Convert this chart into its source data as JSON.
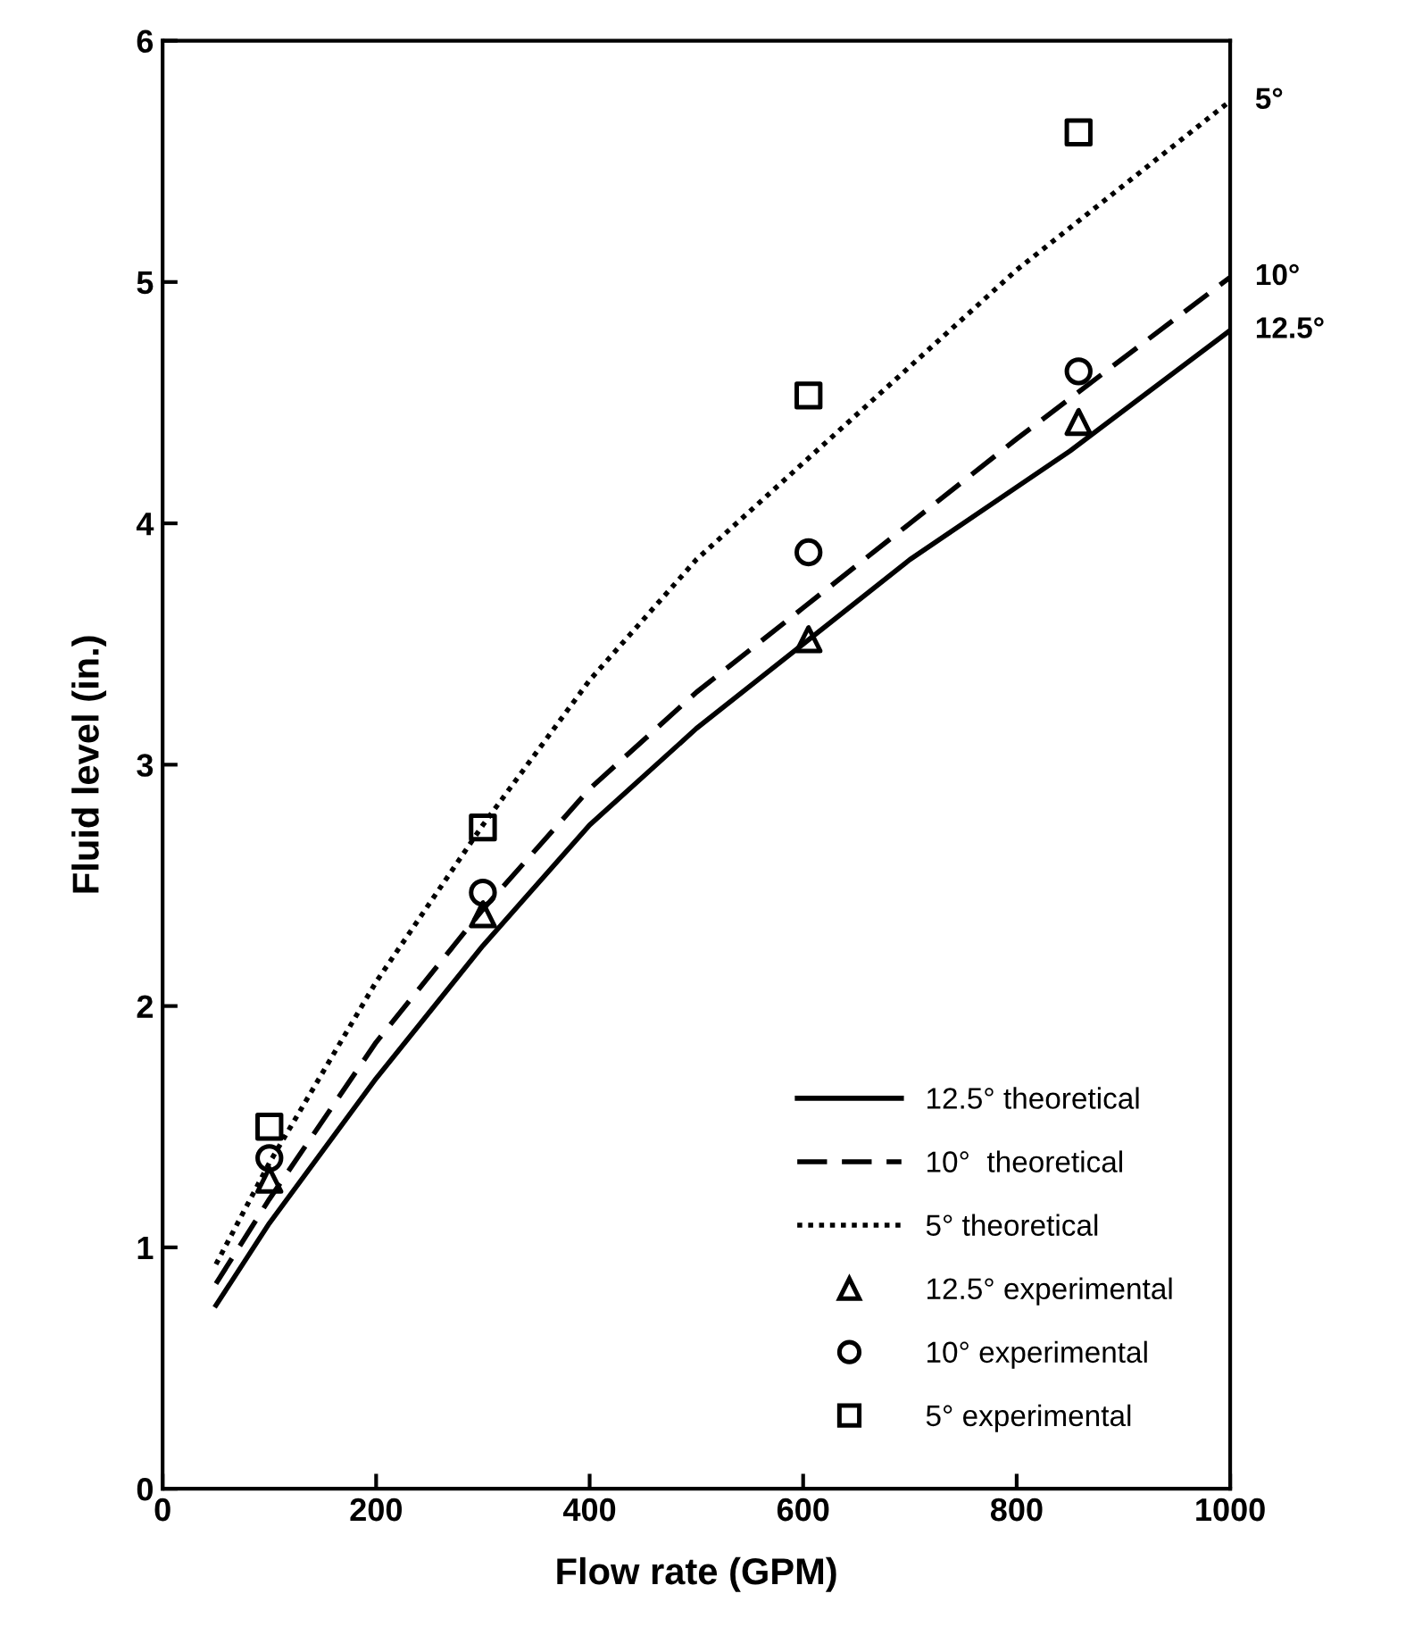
{
  "chart_data": {
    "type": "line",
    "xlabel": "Flow rate (GPM)",
    "ylabel": "Fluid level (in.)",
    "xlim": [
      0,
      1000
    ],
    "ylim": [
      0,
      6
    ],
    "xticks": [
      0,
      200,
      400,
      600,
      800,
      1000
    ],
    "yticks": [
      0,
      1,
      2,
      3,
      4,
      5,
      6
    ],
    "grid": false,
    "legend": "bottom right",
    "series": [
      {
        "name": "12.5° theoretical",
        "line_style": "solid",
        "color": "#000000",
        "x": [
          50,
          100,
          200,
          300,
          400,
          500,
          600,
          700,
          800,
          850,
          1000
        ],
        "values": [
          0.76,
          1.1,
          1.7,
          2.25,
          2.75,
          3.15,
          3.5,
          3.85,
          4.15,
          4.3,
          4.8
        ]
      },
      {
        "name": "10°  theoretical",
        "line_style": "dashed",
        "color": "#000000",
        "x": [
          50,
          100,
          200,
          300,
          400,
          500,
          600,
          700,
          800,
          1000
        ],
        "values": [
          0.85,
          1.2,
          1.85,
          2.4,
          2.9,
          3.3,
          3.65,
          4.0,
          4.35,
          5.02
        ]
      },
      {
        "name": "5° theoretical",
        "line_style": "dotted",
        "color": "#000000",
        "x": [
          50,
          100,
          200,
          300,
          400,
          500,
          600,
          700,
          800,
          1000
        ],
        "values": [
          0.93,
          1.35,
          2.1,
          2.75,
          3.35,
          3.85,
          4.25,
          4.65,
          5.05,
          5.75
        ]
      },
      {
        "name": "12.5° experimental",
        "type": "scatter",
        "marker": "triangle",
        "color": "#000000",
        "x": [
          100,
          300,
          605,
          858
        ],
        "values": [
          1.28,
          2.38,
          3.52,
          4.42
        ]
      },
      {
        "name": "10° experimental",
        "type": "scatter",
        "marker": "circle",
        "color": "#000000",
        "x": [
          100,
          300,
          605,
          858
        ],
        "values": [
          1.37,
          2.47,
          3.88,
          4.63
        ]
      },
      {
        "name": "5° experimental",
        "type": "scatter",
        "marker": "square",
        "color": "#000000",
        "x": [
          100,
          300,
          605,
          858
        ],
        "values": [
          1.5,
          2.74,
          4.53,
          5.62
        ]
      }
    ],
    "annotations": [
      "5°",
      "10°",
      "12.5°"
    ]
  }
}
